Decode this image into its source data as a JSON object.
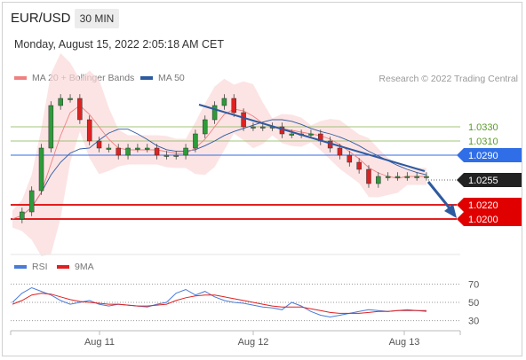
{
  "header": {
    "symbol": "EUR/USD",
    "timeframe": "30 MIN",
    "datetime": "Monday, August 15, 2022 2:05:18 AM CET"
  },
  "legend": {
    "ma20_label": "MA 20 + Bollinger Bands",
    "ma20_color": "#f08080",
    "ma50_label": "MA 50",
    "ma50_color": "#2e5aa0"
  },
  "copyright": "Research © 2022 Trading Central",
  "rsi_legend": {
    "rsi_label": "RSI",
    "rsi_color": "#4a7bd8",
    "ma9_label": "9MA",
    "ma9_color": "#e02020"
  },
  "chart_data": [
    {
      "type": "candlestick",
      "title": "",
      "xlabel": "",
      "ylabel": "",
      "x_ticks": [
        "Aug 11",
        "Aug 12",
        "Aug 13"
      ],
      "current_price": "1.0255",
      "current_price_color": "#222222",
      "levels": [
        {
          "value": 1.033,
          "label": "1.0330",
          "color": "#8ab85a",
          "style": "thin-green"
        },
        {
          "value": 1.031,
          "label": "1.0310",
          "color": "#8ab85a",
          "style": "thin-green"
        },
        {
          "value": 1.029,
          "label": "1.0290",
          "color": "#2f6ee6",
          "style": "resistance"
        },
        {
          "value": 1.022,
          "label": "1.0220",
          "color": "#e00000",
          "style": "support"
        },
        {
          "value": 1.02,
          "label": "1.0200",
          "color": "#e00000",
          "style": "support"
        }
      ],
      "forecast": "bearish",
      "price_path": [
        1.02,
        1.021,
        1.024,
        1.03,
        1.036,
        1.037,
        1.037,
        1.034,
        1.031,
        1.03,
        1.03,
        1.029,
        1.03,
        1.03,
        1.03,
        1.029,
        1.029,
        1.029,
        1.03,
        1.032,
        1.034,
        1.036,
        1.037,
        1.035,
        1.033,
        1.033,
        1.033,
        1.033,
        1.032,
        1.032,
        1.032,
        1.032,
        1.031,
        1.03,
        1.029,
        1.028,
        1.027,
        1.025,
        1.026,
        1.026,
        1.026,
        1.026,
        1.026,
        1.026
      ]
    },
    {
      "type": "line",
      "title": "",
      "yticks": [
        "70",
        "50",
        "30"
      ],
      "ylim": [
        20,
        80
      ],
      "series": [
        {
          "name": "RSI",
          "color": "#4a7bd8",
          "values": [
            50,
            60,
            66,
            62,
            58,
            52,
            48,
            50,
            52,
            48,
            46,
            48,
            47,
            46,
            45,
            48,
            50,
            60,
            64,
            58,
            62,
            56,
            52,
            50,
            49,
            47,
            45,
            44,
            42,
            50,
            46,
            40,
            36,
            34,
            36,
            38,
            40,
            42,
            41,
            40,
            41,
            42,
            41,
            40
          ]
        },
        {
          "name": "9MA",
          "color": "#e02020",
          "values": [
            48,
            52,
            58,
            60,
            59,
            56,
            53,
            51,
            50,
            49,
            48,
            48,
            47,
            46,
            46,
            47,
            48,
            52,
            55,
            57,
            58,
            58,
            56,
            54,
            52,
            50,
            48,
            46,
            45,
            45,
            45,
            43,
            41,
            39,
            38,
            38,
            38,
            39,
            40,
            40,
            41,
            41,
            41,
            41
          ]
        }
      ]
    }
  ]
}
